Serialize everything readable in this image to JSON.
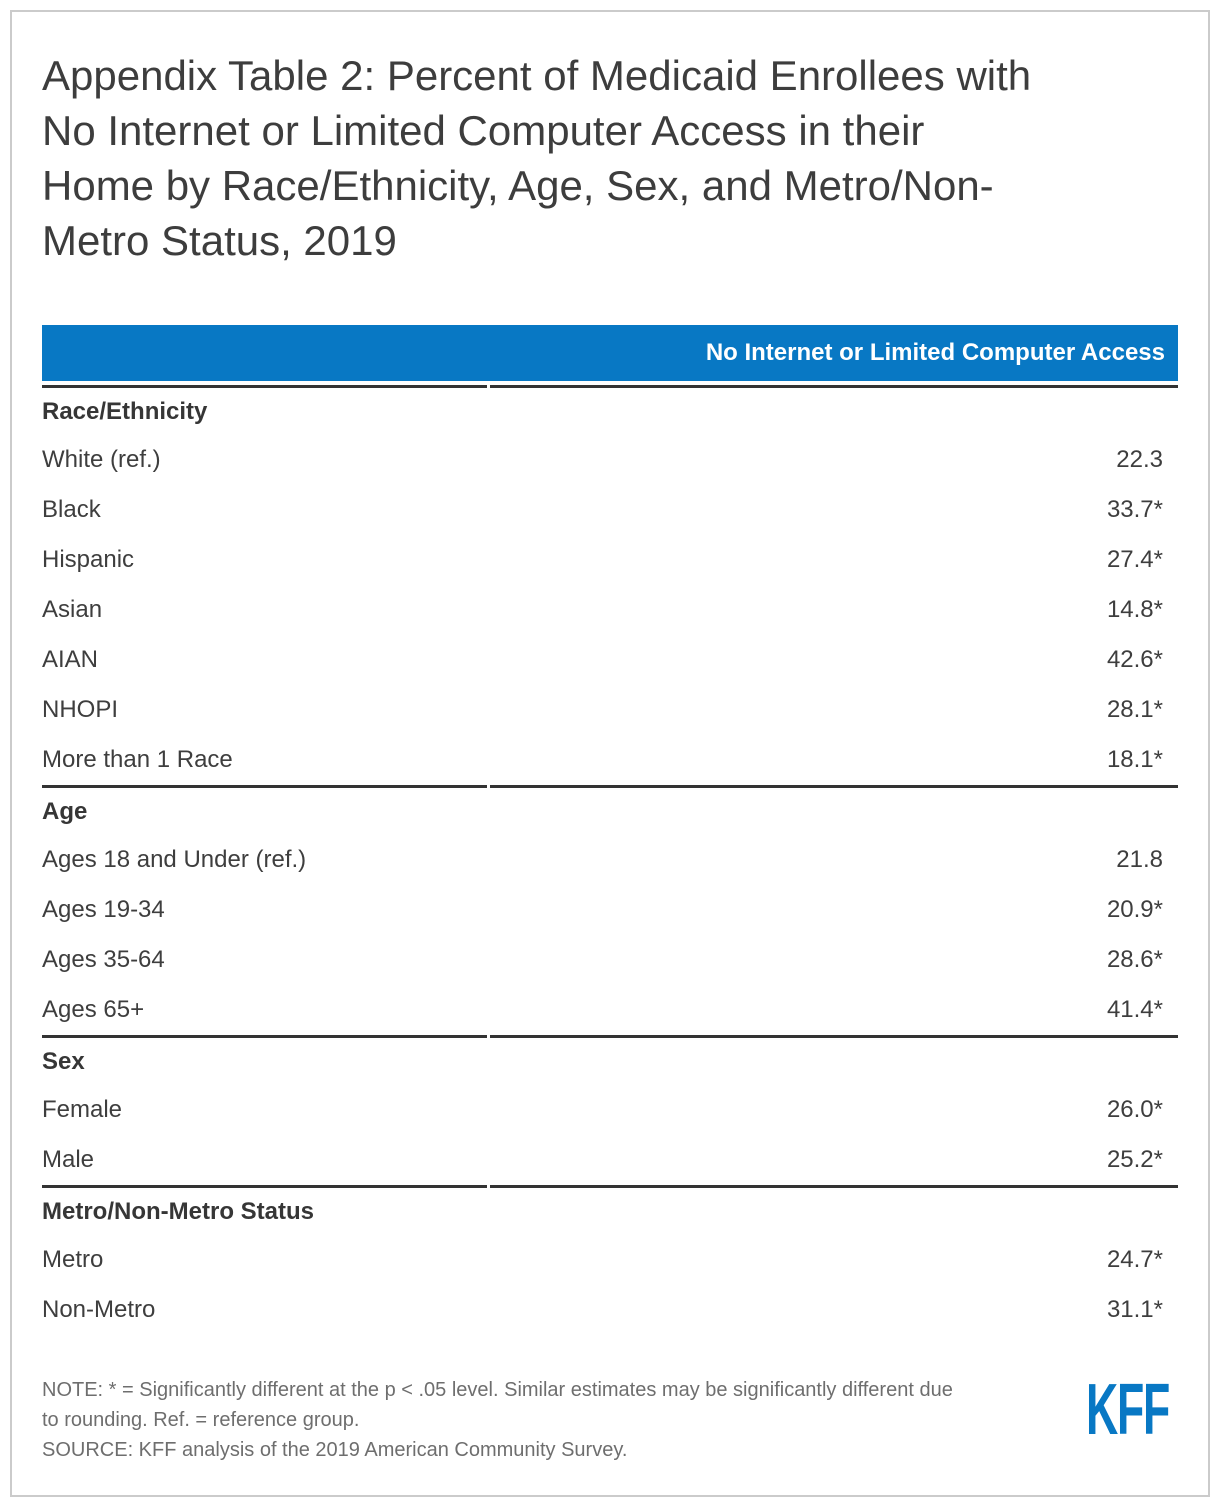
{
  "page": {
    "title_lines": [
      "Appendix Table 2: Percent of Medicaid Enrollees with",
      "No Internet or Limited Computer Access in their",
      "Home by Race/Ethnicity, Age, Sex, and Metro/Non-",
      "Metro Status, 2019"
    ]
  },
  "table": {
    "header": "No Internet or Limited Computer Access",
    "sections": [
      {
        "label": "Race/Ethnicity",
        "rows": [
          {
            "label": "White (ref.)",
            "value": "22.3"
          },
          {
            "label": "Black",
            "value": "33.7*"
          },
          {
            "label": "Hispanic",
            "value": "27.4*"
          },
          {
            "label": "Asian",
            "value": "14.8*"
          },
          {
            "label": "AIAN",
            "value": "42.6*"
          },
          {
            "label": "NHOPI",
            "value": "28.1*"
          },
          {
            "label": "More than 1 Race",
            "value": "18.1*"
          }
        ]
      },
      {
        "label": "Age",
        "rows": [
          {
            "label": "Ages 18 and Under (ref.)",
            "value": "21.8"
          },
          {
            "label": "Ages 19-34",
            "value": "20.9*"
          },
          {
            "label": "Ages 35-64",
            "value": "28.6*"
          },
          {
            "label": "Ages 65+",
            "value": "41.4*"
          }
        ]
      },
      {
        "label": "Sex",
        "rows": [
          {
            "label": "Female",
            "value": "26.0*"
          },
          {
            "label": "Male",
            "value": "25.2*"
          }
        ]
      },
      {
        "label": "Metro/Non-Metro Status",
        "rows": [
          {
            "label": "Metro",
            "value": "24.7*"
          },
          {
            "label": "Non-Metro",
            "value": "31.1*"
          }
        ]
      }
    ]
  },
  "footer": {
    "note_lines": [
      "NOTE: * = Significantly different at the p < .05 level. Similar estimates may be significantly different due",
      "to rounding. Ref. = reference group."
    ],
    "source": "SOURCE: KFF analysis of the 2019 American Community Survey.",
    "logo_text": "KFF"
  },
  "colors": {
    "brand_blue": "#0878C4",
    "divider_line": "#333333",
    "title_text": "#3D3D3D",
    "body_text": "#3E3E3E",
    "note_text": "#6E6E6E",
    "frame_border": "#CBCBCB"
  }
}
